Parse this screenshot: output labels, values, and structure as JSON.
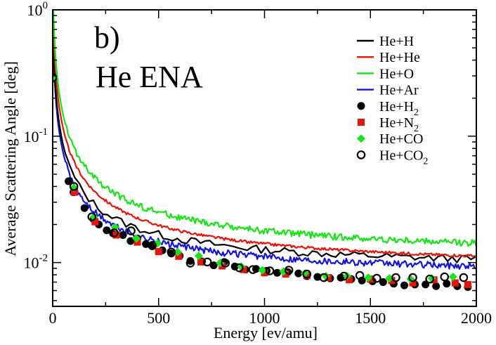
{
  "chart_data": {
    "type": "line",
    "panel_label": "b)",
    "title": "He ENA",
    "xlabel": "Energy [ev/amu]",
    "ylabel": "Average Scattering Angle [deg]",
    "xlim": [
      0,
      2000
    ],
    "ylim_log": [
      0.0045,
      1.0
    ],
    "y_scale": "log",
    "xticks": [
      0,
      500,
      1000,
      1500,
      2000
    ],
    "yticks": [
      {
        "base": "10",
        "exp": "0",
        "value": 1.0
      },
      {
        "base": "10",
        "exp": "-1",
        "value": 0.1
      },
      {
        "base": "10",
        "exp": "-2",
        "value": 0.01
      }
    ],
    "legend_position": "top-right",
    "series": [
      {
        "name": "He+H",
        "sub": "",
        "color": "#000000",
        "style": "line",
        "A": 4.1,
        "c": 0.0086,
        "noise": 0.07
      },
      {
        "name": "He+He",
        "sub": "",
        "color": "#e8140a",
        "style": "line",
        "A": 5.7,
        "c": 0.0084,
        "noise": 0.025
      },
      {
        "name": "He+O",
        "sub": "",
        "color": "#18e418",
        "style": "line",
        "A": 7.3,
        "c": 0.0106,
        "noise": 0.06
      },
      {
        "name": "He+Ar",
        "sub": "",
        "color": "#1414e0",
        "style": "line",
        "A": 3.55,
        "c": 0.0076,
        "noise": 0.06
      },
      {
        "name": "He+H",
        "sub": "2",
        "color": "#000000",
        "style": "marker",
        "marker": "circle-filled",
        "x": [
          75,
          98,
          150,
          193,
          218,
          255,
          285,
          332,
          368,
          400,
          440,
          470,
          518,
          560,
          600,
          650,
          705,
          760,
          810,
          860,
          910,
          960,
          1010,
          1060,
          1110,
          1160,
          1200,
          1250,
          1310,
          1360,
          1410,
          1460,
          1510,
          1560,
          1610,
          1660,
          1710,
          1760,
          1810,
          1860,
          1910,
          1960
        ],
        "y": [
          0.044,
          0.036,
          0.027,
          0.022,
          0.02,
          0.018,
          0.017,
          0.0165,
          0.0148,
          0.0155,
          0.014,
          0.0138,
          0.0125,
          0.0118,
          0.0113,
          0.0103,
          0.0102,
          0.0095,
          0.0101,
          0.0093,
          0.0088,
          0.0089,
          0.0086,
          0.0083,
          0.0084,
          0.0082,
          0.0078,
          0.0077,
          0.0075,
          0.0076,
          0.0074,
          0.0072,
          0.0071,
          0.007,
          0.0068,
          0.0066,
          0.0067,
          0.0067,
          0.0065,
          0.0068,
          0.0065,
          0.0064
        ]
      },
      {
        "name": "He+N",
        "sub": "2",
        "color": "#e8140a",
        "style": "marker",
        "marker": "square",
        "x": [
          103,
          200,
          300,
          400,
          500,
          595,
          700,
          800,
          900,
          1000,
          1100,
          1200,
          1300,
          1400,
          1500,
          1600,
          1700,
          1800,
          1900,
          1960
        ],
        "y": [
          0.036,
          0.021,
          0.0165,
          0.0145,
          0.0122,
          0.0112,
          0.0101,
          0.0094,
          0.0088,
          0.0083,
          0.0081,
          0.0079,
          0.0076,
          0.0073,
          0.0074,
          0.0072,
          0.0069,
          0.0073,
          0.0069,
          0.0067
        ]
      },
      {
        "name": "He+CO",
        "sub": "",
        "color": "#18e418",
        "style": "marker",
        "marker": "diamond",
        "x": [
          100,
          195,
          295,
          395,
          495,
          590,
          690,
          790,
          890,
          990,
          1090,
          1190,
          1290,
          1390,
          1490,
          1590,
          1690,
          1790,
          1890
        ],
        "y": [
          0.039,
          0.023,
          0.019,
          0.0155,
          0.0142,
          0.0121,
          0.0113,
          0.0099,
          0.0093,
          0.0087,
          0.0085,
          0.0082,
          0.0078,
          0.0078,
          0.0076,
          0.0075,
          0.0074,
          0.0075,
          0.0077
        ]
      },
      {
        "name": "He+CO",
        "sub": "2",
        "color": "#000000",
        "style": "marker",
        "marker": "circle-open",
        "x": [
          0,
          100,
          185,
          290,
          370,
          470,
          560,
          650,
          730,
          815,
          880,
          945,
          1025,
          1115,
          1200,
          1280,
          1375,
          1450,
          1530,
          1620,
          1700,
          1780,
          1850,
          1940
        ],
        "y": [
          0.29,
          0.04,
          0.023,
          0.0172,
          0.0178,
          0.0136,
          0.0121,
          0.0099,
          0.0101,
          0.0099,
          0.0091,
          0.0088,
          0.0086,
          0.0087,
          0.0081,
          0.0076,
          0.0078,
          0.0079,
          0.0075,
          0.0076,
          0.0076,
          0.0074,
          0.0077,
          0.0076
        ]
      }
    ]
  }
}
